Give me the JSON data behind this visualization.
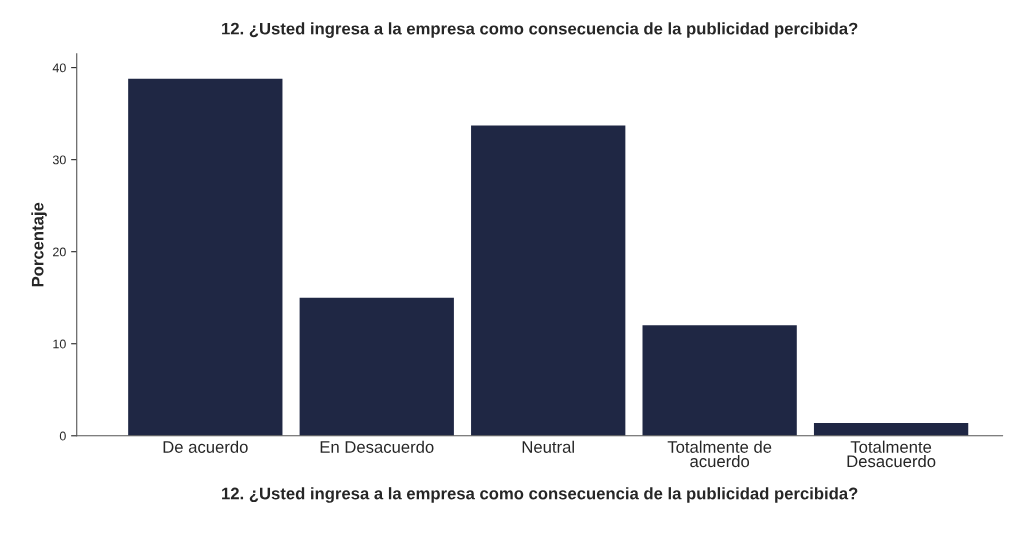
{
  "chart_data": {
    "type": "bar",
    "title": "12. ¿Usted ingresa a la empresa como consecuencia de la publicidad percibida?",
    "xlabel": "12. ¿Usted ingresa a la empresa como consecuencia de la publicidad percibida?",
    "ylabel": "Porcentaje",
    "categories": [
      "De acuerdo",
      "En Desacuerdo",
      "Neutral",
      "Totalmente de\nacuerdo",
      "Totalmente\nDesacuerdo"
    ],
    "values": [
      38.8,
      15.0,
      33.7,
      12.0,
      1.4
    ],
    "color": "#1f2744",
    "ylim": [
      0,
      41.5
    ],
    "yticks": [
      0,
      10,
      20,
      30,
      40
    ],
    "grid": false
  }
}
